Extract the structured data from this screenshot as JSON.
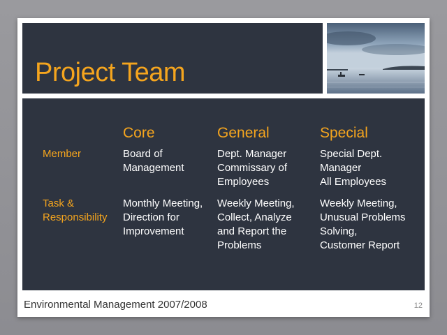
{
  "slide": {
    "title": "Project Team",
    "columns": [
      "Core",
      "General",
      "Special"
    ],
    "rows": [
      {
        "label_lines": [
          "Member"
        ],
        "cells": [
          [
            "Board of",
            "Management"
          ],
          [
            "Dept. Manager",
            "Commissary of",
            "Employees"
          ],
          [
            "Special Dept.",
            "Manager",
            "All Employees"
          ]
        ]
      },
      {
        "label_lines": [
          "Task &",
          "Responsibility"
        ],
        "cells": [
          [
            "Monthly Meeting,",
            "Direction for",
            "Improvement"
          ],
          [
            "Weekly Meeting,",
            "Collect, Analyze",
            "and Report the",
            "Problems"
          ],
          [
            "Weekly Meeting,",
            "Unusual Problems",
            "Solving,",
            "Customer Report"
          ]
        ]
      }
    ],
    "footer": "Environmental Management 2007/2008",
    "page_number": "12"
  },
  "colors": {
    "panel": "#2e3440",
    "accent": "#f5a51e",
    "text": "#ffffff"
  }
}
